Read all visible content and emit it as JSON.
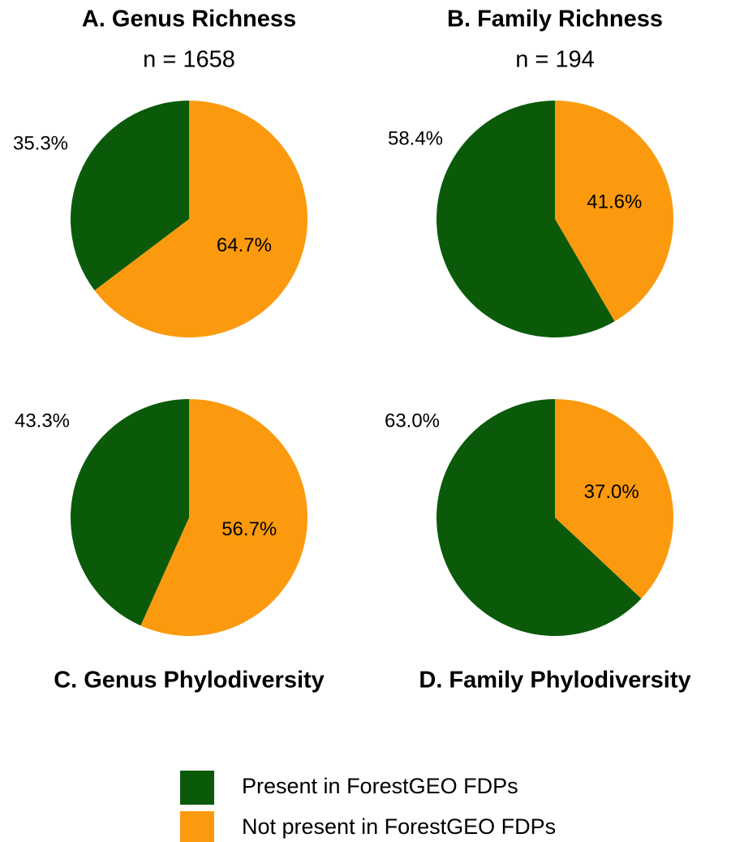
{
  "chart_data": [
    {
      "type": "pie",
      "title": "A. Genus Richness",
      "subtitle": "n = 1658",
      "values": [
        35.3,
        64.7
      ],
      "value_labels": [
        "35.3%",
        "64.7%"
      ]
    },
    {
      "type": "pie",
      "title": "B. Family Richness",
      "subtitle": "n = 194",
      "values": [
        58.4,
        41.6
      ],
      "value_labels": [
        "58.4%",
        "41.6%"
      ]
    },
    {
      "type": "pie",
      "title": "C.  Genus Phylodiversity",
      "values": [
        43.3,
        56.7
      ],
      "value_labels": [
        "43.3%",
        "56.7%"
      ]
    },
    {
      "type": "pie",
      "title": "D.  Family Phylodiversity",
      "values": [
        63.0,
        37.0
      ],
      "value_labels": [
        "63.0%",
        "37.0%"
      ]
    }
  ],
  "legend": {
    "entries": [
      {
        "name": "Present in ForestGEO FDPs",
        "color": "#0a5a0a"
      },
      {
        "name": "Not present in ForestGEO FDPs",
        "color": "#fb9a0e"
      }
    ]
  }
}
